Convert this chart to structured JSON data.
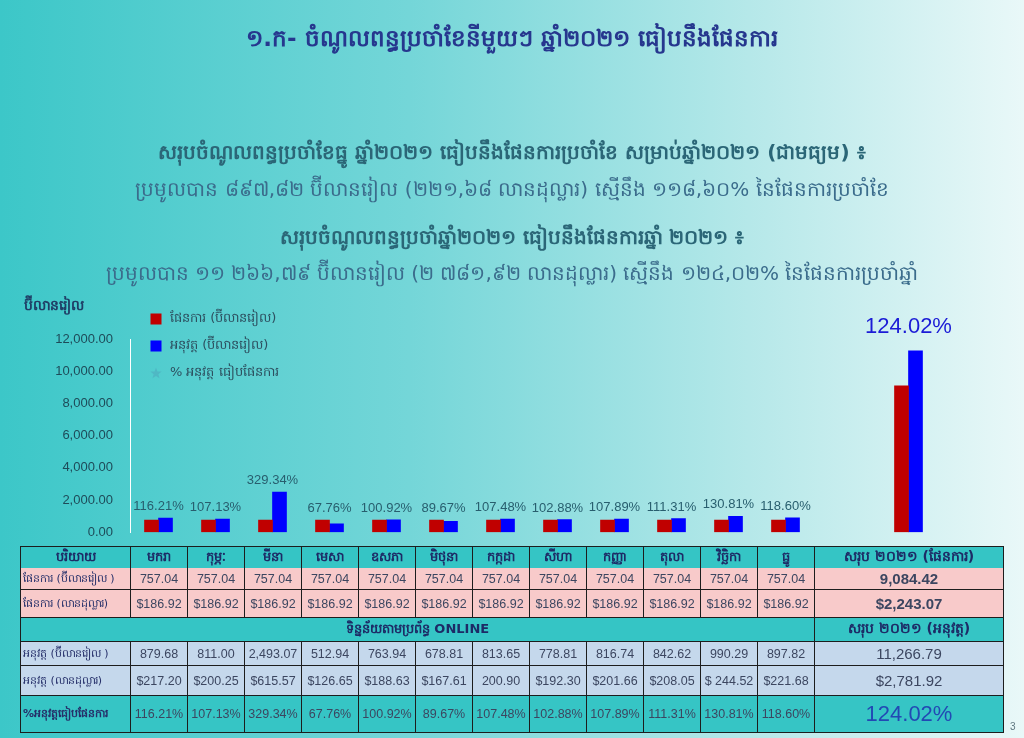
{
  "chart_data": [
    {
      "type": "bar",
      "title": "១.ក- ចំណូលពន្ធប្រចាំខែនីមួយៗ ឆ្នាំ២០២១ ធៀបនឹងផែនការ",
      "annotations": [
        "សរុបចំណូលពន្ធប្រចាំខែធ្នូ ឆ្នាំ២០២១ ធៀបនឹងផែនការប្រចាំខែ សម្រាប់ឆ្នាំ២០២១ (ជាមធ្យម) ៖",
        "ប្រមូលបាន ៨៩៧,៨២ ប៊ីលានរៀល (២២១,៦៨ លានដុល្លារ) ស្មើនឹង ១១៨,៦០% នៃផែនការប្រចាំខែ",
        "សរុបចំណូលពន្ធប្រចាំឆ្នាំ២០២១ ធៀបនឹងផែនការឆ្នាំ ២០២១ ៖",
        "ប្រមូលបាន ១១ ២៦៦,៧៩ ប៊ីលានរៀល (២ ៧៨១,៩២ លានដុល្លារ) ស្មើនឹង ១២៤,០២% នៃផែនការប្រចាំឆ្នាំ",
        {
          "text": "116.21%",
          "x": "មករា",
          "y": 879.68
        },
        {
          "text": "107.13%",
          "x": "កុម្ភៈ",
          "y": 811.0
        },
        {
          "text": "329.34%",
          "x": "មីនា",
          "y": 2493.07
        },
        {
          "text": "67.76%",
          "x": "មេសា",
          "y": 757.04
        },
        {
          "text": "100.92%",
          "x": "ឧសភា",
          "y": 763.94
        },
        {
          "text": "89.67%",
          "x": "មិថុនា",
          "y": 757.04
        },
        {
          "text": "107.48%",
          "x": "កក្កដា",
          "y": 813.65
        },
        {
          "text": "102.88%",
          "x": "សីហា",
          "y": 778.81
        },
        {
          "text": "107.89%",
          "x": "កញ្ញា",
          "y": 816.74
        },
        {
          "text": "111.31%",
          "x": "តុលា",
          "y": 842.62
        },
        {
          "text": "130.81%",
          "x": "វិច្ឆិកា",
          "y": 990.29
        },
        {
          "text": "118.60%",
          "x": "ធ្នូ",
          "y": 897.82
        },
        {
          "text": "124.02%",
          "x": "សរុប ២០២១ (ផែនការ)",
          "y": 11266.79
        }
      ],
      "xlabel": "បរិយាយ",
      "ylabel": "ប៊ីលានរៀល",
      "categories": [
        "មករា",
        "កុម្ភៈ",
        "មីនា",
        "មេសា",
        "ឧសភា",
        "មិថុនា",
        "កក្កដា",
        "សីហា",
        "កញ្ញា",
        "តុលា",
        "វិច្ឆិកា",
        "ធ្នូ",
        "សរុប ២០២១ (ផែនការ)"
      ],
      "series": [
        {
          "name": "ផែនការ (ប៊ីលានរៀល)",
          "color": "#c00000",
          "values": [
            757.04,
            757.04,
            757.04,
            757.04,
            757.04,
            757.04,
            757.04,
            757.04,
            757.04,
            757.04,
            757.04,
            757.04,
            9084.42
          ]
        },
        {
          "name": "អនុវត្ត (ប៊ីលានរៀល)",
          "color": "#0000ff",
          "values": [
            879.68,
            811.0,
            2493.07,
            512.94,
            763.94,
            678.81,
            813.65,
            778.81,
            816.74,
            842.62,
            990.29,
            897.82,
            11266.79
          ]
        },
        {
          "name": "% អនុវត្ត ធៀបផែនការ",
          "type": "scatter",
          "color": "#4fb8c4",
          "values": [
            null,
            null,
            null,
            null,
            null,
            null,
            null,
            null,
            null,
            null,
            null,
            null,
            null
          ]
        }
      ],
      "marker": "star",
      "ylim": [
        0,
        12000
      ],
      "yticks": [
        {
          "value": 0,
          "label": "0.00"
        },
        {
          "value": 2000,
          "label": "2,000.00"
        },
        {
          "value": 4000,
          "label": "4,000.00"
        },
        {
          "value": 6000,
          "label": "6,000.00"
        },
        {
          "value": 8000,
          "label": "8,000.00"
        },
        {
          "value": 10000,
          "label": "10,000.00"
        },
        {
          "value": 12000,
          "label": "12,000.00"
        }
      ],
      "grid": false,
      "legend": "top left"
    },
    {
      "type": "other",
      "annotations": [
        "ផែនការ (ប៊ីលានរៀល )",
        "757.04",
        "757.04",
        "757.04",
        "757.04",
        "757.04",
        "757.04",
        "757.04",
        "757.04",
        "757.04",
        "757.04",
        "757.04",
        "757.04",
        "9,084.42",
        "ផែនការ (លានដុល្លារ)",
        "$186.92",
        "$186.92",
        "$186.92",
        "$186.92",
        "$186.92",
        "$186.92",
        "$186.92",
        "$186.92",
        "$186.92",
        "$186.92",
        "$186.92",
        "$186.92",
        "$2,243.07",
        "ទិន្នន័យតាមប្រព័ន្ធ ONLINE",
        "សរុប ២០២១ (អនុវត្ត)",
        "អនុវត្ត (ប៊ីលានរៀល )",
        "879.68",
        "811.00",
        "2,493.07",
        "512.94",
        "763.94",
        "678.81",
        "813.65",
        "778.81",
        "816.74",
        "842.62",
        "990.29",
        "897.82",
        "11,266.79",
        "អនុវត្ត (លានដុល្លារ)",
        "$217.20",
        "$200.25",
        "$615.57",
        "$126.65",
        "$188.63",
        "$167.61",
        "200.90",
        "$192.30",
        "$201.66",
        "$208.05",
        "$ 244.52",
        "$221.68",
        "$2,781.92",
        "%អនុវត្តធៀបផែនការ",
        "116.21%",
        "107.13%",
        "329.34%",
        "67.76%",
        "100.92%",
        "89.67%",
        "107.48%",
        "102.88%",
        "107.89%",
        "111.31%",
        "130.81%",
        "118.60%",
        "124.02%",
        "3"
      ]
    }
  ]
}
